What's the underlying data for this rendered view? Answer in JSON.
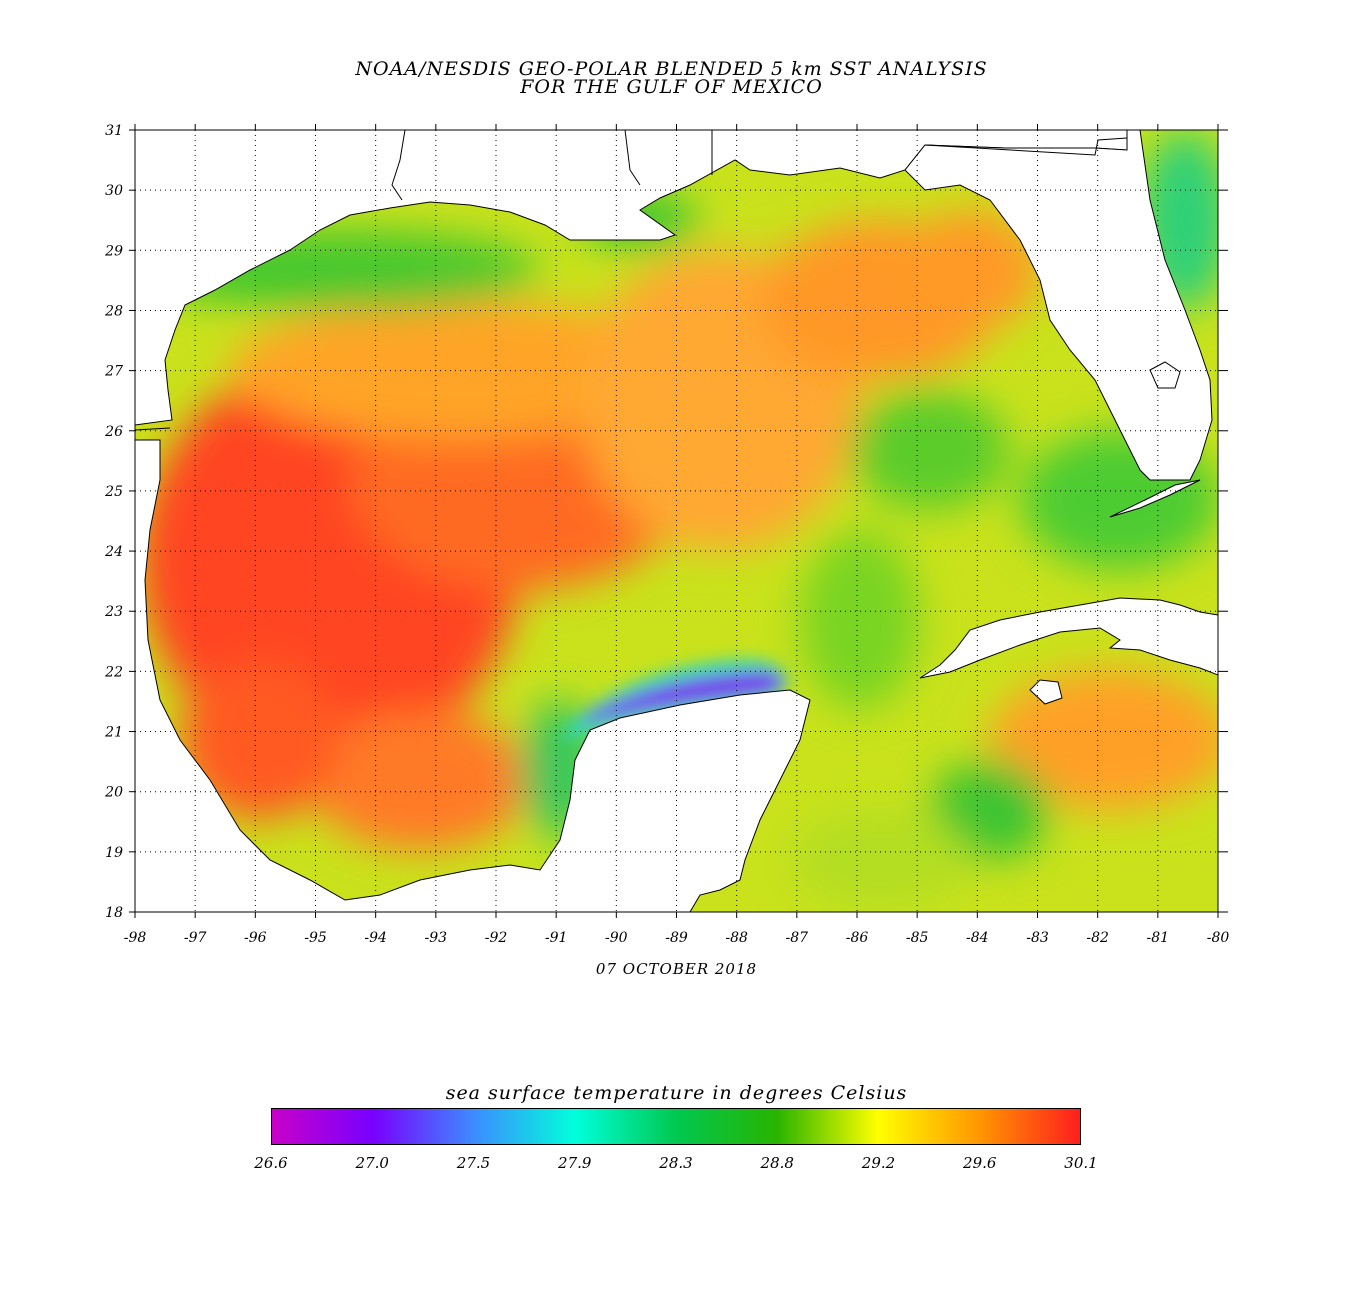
{
  "title": {
    "line1": "NOAA/NESDIS GEO-POLAR BLENDED 5 km SST ANALYSIS",
    "line2": "FOR THE GULF OF MEXICO"
  },
  "date": "07 OCTOBER 2018",
  "map": {
    "lon_range": [
      -98,
      -80
    ],
    "lat_range": [
      18,
      31
    ],
    "x_tick_labels": [
      "-98",
      "-97",
      "-96",
      "-95",
      "-94",
      "-93",
      "-92",
      "-91",
      "-90",
      "-89",
      "-88",
      "-87",
      "-86",
      "-85",
      "-84",
      "-83",
      "-82",
      "-81",
      "-80"
    ],
    "y_tick_labels": [
      "18",
      "19",
      "20",
      "21",
      "22",
      "23",
      "24",
      "25",
      "26",
      "27",
      "28",
      "29",
      "30",
      "31"
    ],
    "grid": "dotted",
    "colors": {
      "land": "#ffffff",
      "coastline": "#000000",
      "warm_core": "#ff3c1e",
      "mid_warm": "#ff9a1e",
      "mild": "#e6ea14",
      "cool_shelf": "#2ec82a",
      "coldest_upwelling": "#7a1ef0"
    }
  },
  "colorbar": {
    "title": "sea surface temperature in degrees Celsius",
    "labels": [
      "26.6",
      "27.0",
      "27.5",
      "27.9",
      "28.3",
      "28.8",
      "29.2",
      "29.6",
      "30.1"
    ],
    "colors": [
      "#c800c8",
      "#7800ff",
      "#3c8cff",
      "#00ffdc",
      "#00c850",
      "#28b400",
      "#ffff00",
      "#ff9600",
      "#ff1e1e"
    ]
  }
}
